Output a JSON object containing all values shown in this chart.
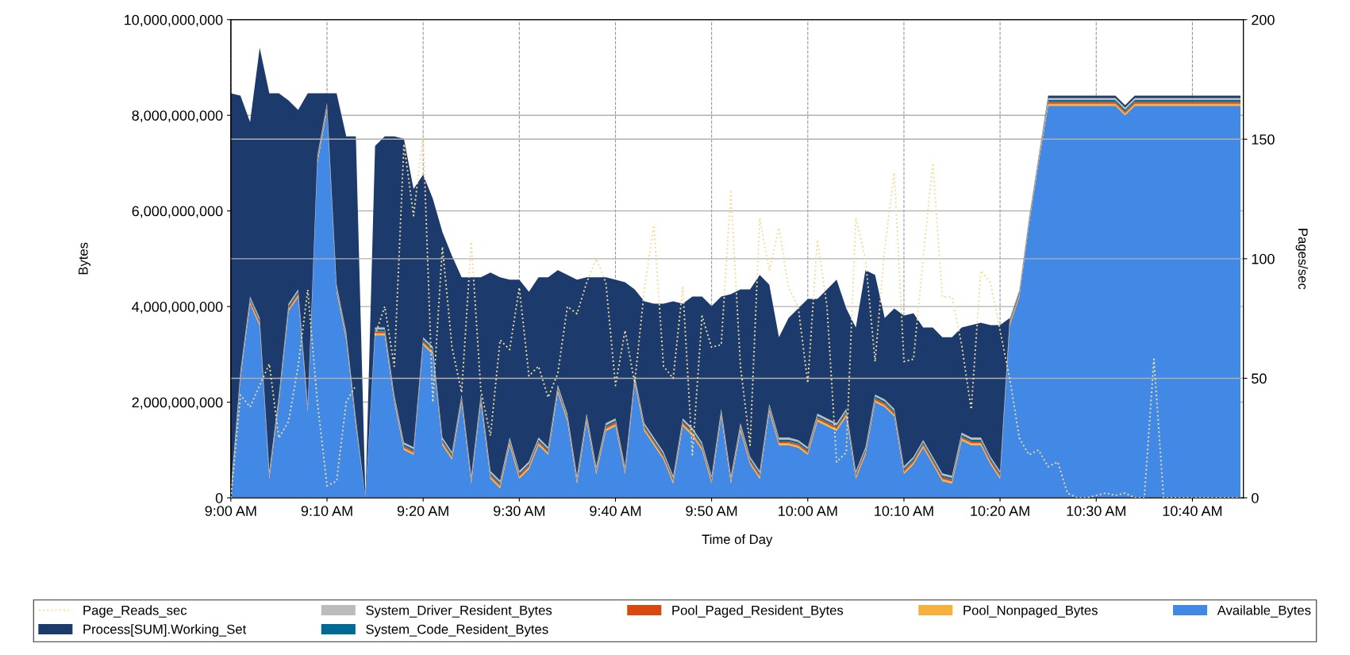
{
  "chart_data": {
    "type": "area",
    "stacked": true,
    "xlabel": "Time of Day",
    "ylabel": "Bytes",
    "y2label": "Pages/sec",
    "x": [
      9,
      9.0167,
      9.0333,
      9.05,
      9.0667,
      9.0833,
      9.1,
      9.1167,
      9.1333,
      9.15,
      9.1667,
      9.1833,
      9.2,
      9.2167,
      9.2333,
      9.25,
      9.2667,
      9.2833,
      9.3,
      9.3167,
      9.3333,
      9.35,
      9.3667,
      9.3833,
      9.4,
      9.4167,
      9.4333,
      9.45,
      9.4667,
      9.4833,
      9.5,
      9.5167,
      9.5333,
      9.55,
      9.5667,
      9.5833,
      9.6,
      9.6167,
      9.6333,
      9.65,
      9.6667,
      9.6833,
      9.7,
      9.7167,
      9.7333,
      9.75,
      9.7667,
      9.7833,
      9.8,
      9.8167,
      9.8333,
      9.85,
      9.8667,
      9.8833,
      9.9,
      9.9167,
      9.9333,
      9.95,
      9.9667,
      9.9833,
      10,
      10.0167,
      10.0333,
      10.05,
      10.0667,
      10.0833,
      10.1,
      10.1167,
      10.1333,
      10.15,
      10.1667,
      10.1833,
      10.2,
      10.2167,
      10.2333,
      10.25,
      10.2667,
      10.2833,
      10.3,
      10.3167,
      10.3333,
      10.35,
      10.3667,
      10.3833,
      10.4,
      10.4167,
      10.4333,
      10.45,
      10.4667,
      10.4833,
      10.5,
      10.5167,
      10.5333,
      10.55,
      10.5667,
      10.5833,
      10.6,
      10.6167,
      10.6333,
      10.65,
      10.6667,
      10.6833,
      10.7,
      10.7167,
      10.7333,
      10.75
    ],
    "series": [
      {
        "name": "Page_Reads_sec",
        "type": "line",
        "axis": "y2",
        "line_style": "dotted",
        "color": "#f2dc96",
        "values": [
          0,
          43,
          38,
          47,
          56,
          25,
          32,
          55,
          87,
          40,
          5,
          7,
          40,
          47,
          null,
          68,
          80,
          55,
          148,
          118,
          152,
          40,
          105,
          63,
          44,
          107,
          45,
          26,
          66,
          62,
          88,
          51,
          55,
          42,
          52,
          80,
          77,
          90,
          100,
          90,
          47,
          70,
          48,
          87,
          114,
          55,
          50,
          88,
          18,
          76,
          63,
          64,
          128,
          55,
          22,
          117,
          95,
          113,
          88,
          80,
          48,
          108,
          80,
          15,
          19,
          117,
          100,
          57,
          104,
          136,
          57,
          58,
          100,
          140,
          84,
          84,
          64,
          37,
          95,
          90,
          70,
          50,
          25,
          18,
          20,
          13,
          15,
          2,
          0,
          0,
          1,
          2,
          1,
          2,
          0,
          0,
          58,
          0,
          0,
          0,
          0,
          0,
          0,
          0,
          0,
          0
        ]
      },
      {
        "name": "Available_Bytes",
        "color": "#4189e5",
        "values": [
          0,
          2500000000.0,
          4050000000.0,
          3600000000.0,
          400000000.0,
          2000000000.0,
          3900000000.0,
          4200000000.0,
          1800000000.0,
          7000000000.0,
          8100000000.0,
          4300000000.0,
          3300000000.0,
          1500000000.0,
          0,
          3400000000.0,
          3400000000.0,
          2000000000.0,
          1000000000.0,
          900000000.0,
          3200000000.0,
          3000000000.0,
          1100000000.0,
          800000000.0,
          2000000000.0,
          300000000.0,
          2000000000.0,
          400000000.0,
          200000000.0,
          1100000000.0,
          400000000.0,
          600000000.0,
          1100000000.0,
          900000000.0,
          2200000000.0,
          1600000000.0,
          300000000.0,
          1600000000.0,
          500000000.0,
          1400000000.0,
          1500000000.0,
          500000000.0,
          2400000000.0,
          1400000000.0,
          1100000000.0,
          800000000.0,
          300000000.0,
          1500000000.0,
          1300000000.0,
          1000000000.0,
          300000000.0,
          1700000000.0,
          300000000.0,
          1400000000.0,
          700000000.0,
          400000000.0,
          1800000000.0,
          1100000000.0,
          1100000000.0,
          1050000000.0,
          900000000.0,
          1600000000.0,
          1500000000.0,
          1400000000.0,
          1700000000.0,
          400000000.0,
          900000000.0,
          2000000000.0,
          1900000000.0,
          1700000000.0,
          500000000.0,
          700000000.0,
          1050000000.0,
          700000000.0,
          350000000.0,
          300000000.0,
          1200000000.0,
          1100000000.0,
          1100000000.0,
          700000000.0,
          400000000.0,
          3600000000.0,
          4200000000.0,
          5700000000.0,
          7000000000.0,
          8200000000.0,
          8200000000.0,
          8200000000.0,
          8200000000.0,
          8200000000.0,
          8200000000.0,
          8200000000.0,
          8200000000.0,
          8000000000.0,
          8200000000.0,
          8200000000.0,
          8200000000.0,
          8200000000.0,
          8200000000.0,
          8200000000.0,
          8200000000.0,
          8200000000.0,
          8200000000.0,
          8200000000.0,
          8200000000.0,
          8200000000.0
        ]
      },
      {
        "name": "Pool_Nonpaged_Bytes",
        "color": "#f8b03c",
        "values": [
          40000000.0,
          40000000.0,
          40000000.0,
          40000000.0,
          40000000.0,
          40000000.0,
          40000000.0,
          40000000.0,
          40000000.0,
          40000000.0,
          40000000.0,
          40000000.0,
          40000000.0,
          40000000.0,
          0,
          40000000.0,
          40000000.0,
          40000000.0,
          40000000.0,
          40000000.0,
          40000000.0,
          40000000.0,
          40000000.0,
          40000000.0,
          40000000.0,
          40000000.0,
          40000000.0,
          40000000.0,
          40000000.0,
          40000000.0,
          40000000.0,
          40000000.0,
          40000000.0,
          40000000.0,
          40000000.0,
          40000000.0,
          40000000.0,
          40000000.0,
          40000000.0,
          40000000.0,
          40000000.0,
          40000000.0,
          40000000.0,
          40000000.0,
          40000000.0,
          40000000.0,
          40000000.0,
          40000000.0,
          40000000.0,
          40000000.0,
          40000000.0,
          40000000.0,
          40000000.0,
          40000000.0,
          40000000.0,
          40000000.0,
          40000000.0,
          40000000.0,
          40000000.0,
          40000000.0,
          40000000.0,
          40000000.0,
          40000000.0,
          40000000.0,
          40000000.0,
          40000000.0,
          40000000.0,
          40000000.0,
          40000000.0,
          40000000.0,
          40000000.0,
          40000000.0,
          40000000.0,
          40000000.0,
          40000000.0,
          40000000.0,
          40000000.0,
          40000000.0,
          40000000.0,
          40000000.0,
          40000000.0,
          40000000.0,
          40000000.0,
          40000000.0,
          40000000.0,
          40000000.0,
          40000000.0,
          40000000.0,
          40000000.0,
          40000000.0,
          40000000.0,
          40000000.0,
          40000000.0,
          40000000.0,
          40000000.0,
          40000000.0,
          40000000.0,
          40000000.0,
          40000000.0,
          40000000.0,
          40000000.0,
          40000000.0,
          40000000.0,
          40000000.0,
          40000000.0,
          40000000.0
        ]
      },
      {
        "name": "Pool_Paged_Resident_Bytes",
        "color": "#d9480f",
        "values": [
          40000000.0,
          40000000.0,
          40000000.0,
          40000000.0,
          40000000.0,
          40000000.0,
          40000000.0,
          40000000.0,
          40000000.0,
          40000000.0,
          40000000.0,
          40000000.0,
          40000000.0,
          40000000.0,
          0,
          40000000.0,
          40000000.0,
          40000000.0,
          40000000.0,
          40000000.0,
          40000000.0,
          40000000.0,
          40000000.0,
          40000000.0,
          40000000.0,
          40000000.0,
          40000000.0,
          40000000.0,
          40000000.0,
          40000000.0,
          40000000.0,
          40000000.0,
          40000000.0,
          40000000.0,
          40000000.0,
          40000000.0,
          40000000.0,
          40000000.0,
          40000000.0,
          40000000.0,
          40000000.0,
          40000000.0,
          40000000.0,
          40000000.0,
          40000000.0,
          40000000.0,
          40000000.0,
          40000000.0,
          40000000.0,
          40000000.0,
          40000000.0,
          40000000.0,
          40000000.0,
          40000000.0,
          40000000.0,
          40000000.0,
          40000000.0,
          40000000.0,
          40000000.0,
          40000000.0,
          40000000.0,
          40000000.0,
          40000000.0,
          40000000.0,
          40000000.0,
          40000000.0,
          40000000.0,
          40000000.0,
          40000000.0,
          40000000.0,
          40000000.0,
          40000000.0,
          40000000.0,
          40000000.0,
          40000000.0,
          40000000.0,
          40000000.0,
          40000000.0,
          40000000.0,
          40000000.0,
          40000000.0,
          40000000.0,
          40000000.0,
          40000000.0,
          40000000.0,
          40000000.0,
          40000000.0,
          40000000.0,
          40000000.0,
          40000000.0,
          40000000.0,
          40000000.0,
          40000000.0,
          40000000.0,
          40000000.0,
          40000000.0,
          40000000.0,
          40000000.0,
          40000000.0,
          40000000.0,
          40000000.0,
          40000000.0,
          40000000.0,
          40000000.0,
          40000000.0,
          40000000.0
        ]
      },
      {
        "name": "System_Code_Resident_Bytes",
        "color": "#006a96",
        "values": [
          40000000.0,
          40000000.0,
          40000000.0,
          40000000.0,
          40000000.0,
          40000000.0,
          40000000.0,
          40000000.0,
          40000000.0,
          40000000.0,
          40000000.0,
          40000000.0,
          40000000.0,
          40000000.0,
          0,
          40000000.0,
          40000000.0,
          40000000.0,
          40000000.0,
          40000000.0,
          40000000.0,
          40000000.0,
          40000000.0,
          40000000.0,
          40000000.0,
          40000000.0,
          40000000.0,
          40000000.0,
          40000000.0,
          40000000.0,
          40000000.0,
          40000000.0,
          40000000.0,
          40000000.0,
          40000000.0,
          40000000.0,
          40000000.0,
          40000000.0,
          40000000.0,
          40000000.0,
          40000000.0,
          40000000.0,
          40000000.0,
          40000000.0,
          40000000.0,
          40000000.0,
          40000000.0,
          40000000.0,
          40000000.0,
          40000000.0,
          40000000.0,
          40000000.0,
          40000000.0,
          40000000.0,
          40000000.0,
          40000000.0,
          40000000.0,
          40000000.0,
          40000000.0,
          40000000.0,
          40000000.0,
          40000000.0,
          40000000.0,
          40000000.0,
          40000000.0,
          40000000.0,
          40000000.0,
          40000000.0,
          40000000.0,
          40000000.0,
          40000000.0,
          40000000.0,
          40000000.0,
          40000000.0,
          40000000.0,
          40000000.0,
          40000000.0,
          40000000.0,
          40000000.0,
          40000000.0,
          40000000.0,
          40000000.0,
          40000000.0,
          40000000.0,
          40000000.0,
          40000000.0,
          40000000.0,
          40000000.0,
          40000000.0,
          40000000.0,
          40000000.0,
          40000000.0,
          40000000.0,
          40000000.0,
          40000000.0,
          40000000.0,
          40000000.0,
          40000000.0,
          40000000.0,
          40000000.0,
          40000000.0,
          40000000.0,
          40000000.0,
          40000000.0,
          40000000.0,
          40000000.0
        ]
      },
      {
        "name": "System_Driver_Resident_Bytes",
        "color": "#bcbcbc",
        "values": [
          40000000.0,
          40000000.0,
          40000000.0,
          40000000.0,
          40000000.0,
          40000000.0,
          40000000.0,
          40000000.0,
          40000000.0,
          40000000.0,
          40000000.0,
          40000000.0,
          40000000.0,
          40000000.0,
          0,
          40000000.0,
          40000000.0,
          40000000.0,
          40000000.0,
          40000000.0,
          40000000.0,
          40000000.0,
          40000000.0,
          40000000.0,
          40000000.0,
          40000000.0,
          40000000.0,
          40000000.0,
          40000000.0,
          40000000.0,
          40000000.0,
          40000000.0,
          40000000.0,
          40000000.0,
          40000000.0,
          40000000.0,
          40000000.0,
          40000000.0,
          40000000.0,
          40000000.0,
          40000000.0,
          40000000.0,
          40000000.0,
          40000000.0,
          40000000.0,
          40000000.0,
          40000000.0,
          40000000.0,
          40000000.0,
          40000000.0,
          40000000.0,
          40000000.0,
          40000000.0,
          40000000.0,
          40000000.0,
          40000000.0,
          40000000.0,
          40000000.0,
          40000000.0,
          40000000.0,
          40000000.0,
          40000000.0,
          40000000.0,
          40000000.0,
          40000000.0,
          40000000.0,
          40000000.0,
          40000000.0,
          40000000.0,
          40000000.0,
          40000000.0,
          40000000.0,
          40000000.0,
          40000000.0,
          40000000.0,
          40000000.0,
          40000000.0,
          40000000.0,
          40000000.0,
          40000000.0,
          40000000.0,
          40000000.0,
          40000000.0,
          40000000.0,
          40000000.0,
          40000000.0,
          40000000.0,
          40000000.0,
          40000000.0,
          40000000.0,
          40000000.0,
          40000000.0,
          40000000.0,
          40000000.0,
          40000000.0,
          40000000.0,
          40000000.0,
          40000000.0,
          40000000.0,
          40000000.0,
          40000000.0,
          40000000.0,
          40000000.0,
          40000000.0,
          40000000.0,
          40000000.0
        ]
      },
      {
        "name": "Process[SUM].Working_Set",
        "color": "#1c3b6c",
        "values": [
          8300000000.0,
          5750000000.0,
          3650000000.0,
          5650000000.0,
          7900000000.0,
          6300000000.0,
          4250000000.0,
          3750000000.0,
          6500000000.0,
          1300000000.0,
          200000000.0,
          4000000000.0,
          4100000000.0,
          5900000000.0,
          0,
          3800000000.0,
          4000000000.0,
          5400000000.0,
          6350000000.0,
          5400000000.0,
          3400000000.0,
          3100000000.0,
          4300000000.0,
          4100000000.0,
          2450000000.0,
          4150000000.0,
          2450000000.0,
          4150000000.0,
          4250000000.0,
          3300000000.0,
          4000000000.0,
          3550000000.0,
          3350000000.0,
          3550000000.0,
          2400000000.0,
          2900000000.0,
          4100000000.0,
          2850000000.0,
          3950000000.0,
          3050000000.0,
          2900000000.0,
          3850000000.0,
          1800000000.0,
          2550000000.0,
          2800000000.0,
          3100000000.0,
          3650000000.0,
          2400000000.0,
          2750000000.0,
          3050000000.0,
          3550000000.0,
          2350000000.0,
          3800000000.0,
          2800000000.0,
          3500000000.0,
          4100000000.0,
          2500000000.0,
          2100000000.0,
          2500000000.0,
          2750000000.0,
          3100000000.0,
          2400000000.0,
          2700000000.0,
          3000000000.0,
          2100000000.0,
          3000000000.0,
          3700000000.0,
          2500000000.0,
          1700000000.0,
          2100000000.0,
          3150000000.0,
          3000000000.0,
          2350000000.0,
          2700000000.0,
          2850000000.0,
          2900000000.0,
          2200000000.0,
          2350000000.0,
          2400000000.0,
          2750000000.0,
          3050000000.0,
          0,
          0,
          0,
          0,
          50000000.0,
          50000000.0,
          50000000.0,
          50000000.0,
          50000000.0,
          50000000.0,
          50000000.0,
          50000000.0,
          50000000.0,
          50000000.0,
          50000000.0,
          50000000.0,
          50000000.0,
          50000000.0,
          50000000.0,
          50000000.0,
          50000000.0,
          50000000.0,
          50000000.0,
          50000000.0,
          50000000.0
        ]
      }
    ],
    "xlim": [
      9,
      10.755
    ],
    "xticks": [
      {
        "value": 9,
        "label": "9:00 AM"
      },
      {
        "value": 9.1667,
        "label": "9:10 AM"
      },
      {
        "value": 9.3333,
        "label": "9:20 AM"
      },
      {
        "value": 9.5,
        "label": "9:30 AM"
      },
      {
        "value": 9.6667,
        "label": "9:40 AM"
      },
      {
        "value": 9.8333,
        "label": "9:50 AM"
      },
      {
        "value": 10,
        "label": "10:00 AM"
      },
      {
        "value": 10.1667,
        "label": "10:10 AM"
      },
      {
        "value": 10.3333,
        "label": "10:20 AM"
      },
      {
        "value": 10.5,
        "label": "10:30 AM"
      },
      {
        "value": 10.6667,
        "label": "10:40 AM"
      }
    ],
    "ylim": [
      0,
      10000000000
    ],
    "yticks": [
      0,
      {
        "value": 2000000000,
        "label": "2,000,000,000"
      },
      {
        "value": 4000000000,
        "label": "4,000,000,000"
      },
      {
        "value": 6000000000,
        "label": "6,000,000,000"
      },
      {
        "value": 8000000000,
        "label": "8,000,000,000"
      },
      {
        "value": 10000000000,
        "label": "10,000,000,000"
      }
    ],
    "y2lim": [
      0,
      200
    ],
    "y2ticks": [
      0,
      50,
      100,
      150,
      200
    ],
    "grid": true,
    "legend": "bottom"
  }
}
